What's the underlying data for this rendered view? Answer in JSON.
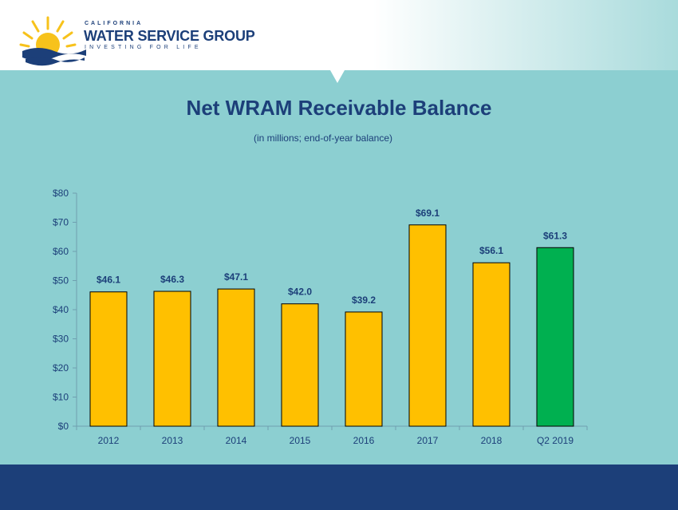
{
  "header": {
    "company_top": "CALIFORNIA",
    "company_name": "WATER SERVICE GROUP",
    "company_tagline": "INVESTING FOR LIFE",
    "logo_icon": "sun-over-water-icon"
  },
  "colors": {
    "background": "#8ccfd1",
    "bar_default": "#ffc000",
    "bar_highlight": "#00b050",
    "text_dark": "#1c3f79",
    "footer": "#1c3f79"
  },
  "chart_data": {
    "type": "bar",
    "title": "Net WRAM Receivable Balance",
    "subtitle": "(in millions; end-of-year balance)",
    "categories": [
      "2012",
      "2013",
      "2014",
      "2015",
      "2016",
      "2017",
      "2018",
      "Q2 2019"
    ],
    "values": [
      46.1,
      46.3,
      47.1,
      42.0,
      39.2,
      69.1,
      56.1,
      61.3
    ],
    "data_labels": [
      "$46.1",
      "$46.3",
      "$47.1",
      "$42.0",
      "$39.2",
      "$69.1",
      "$56.1",
      "$61.3"
    ],
    "highlight_index": 7,
    "ylim": [
      0,
      80
    ],
    "yticks": [
      0,
      10,
      20,
      30,
      40,
      50,
      60,
      70,
      80
    ],
    "ytick_labels": [
      "$0",
      "$10",
      "$20",
      "$30",
      "$40",
      "$50",
      "$60",
      "$70",
      "$80"
    ],
    "xlabel": "",
    "ylabel": "",
    "grid": false,
    "legend": "none"
  }
}
